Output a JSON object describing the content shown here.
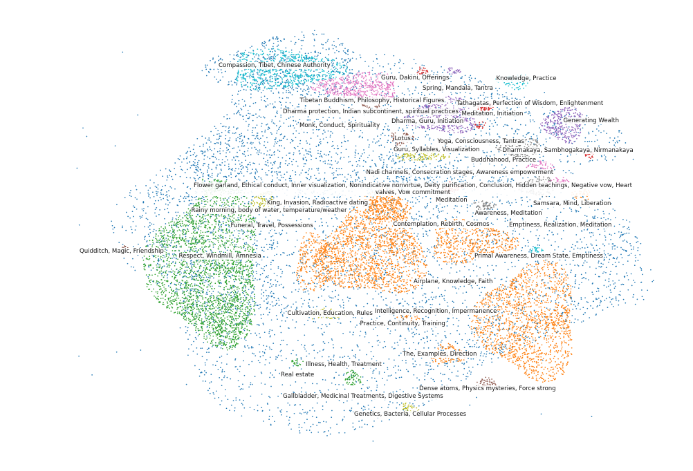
{
  "chart_data": {
    "type": "scatter",
    "title": "",
    "axes_visible": false,
    "grid": false,
    "colors": {
      "background_points": "#1f77b4",
      "teal": "#17becf",
      "pink": "#e377c2",
      "purple": "#9467bd",
      "gray": "#7f7f7f",
      "red": "#d62728",
      "olive": "#bcbd22",
      "brown": "#8c564b",
      "green": "#2ca02c",
      "orange": "#ff7f0e"
    },
    "topic_labels": [
      "Compassion, Tibet, Chinese Authority",
      "Guru, Dakini, Offerings",
      "Spring, Mandala, Tantra",
      "Knowledge, Practice",
      "Tibetan Buddhism, Philosophy, Historical Figures",
      "Dharma protection, Indian subcontinent, spiritual practices",
      "Meditation, Initiation",
      "Dharma, Guru, Initiation",
      "Generating Wealth",
      "Tathagatas, Perfection of Wisdom, Enlightenment",
      "Monk, Conduct, Spirituality",
      "Lotus",
      "Yoga, Consciousness, Tantras",
      "Guru, Syllables, Visualization",
      "Buddhahood, Practice",
      "Dharmakaya, Sambhogakaya, Nirmanakaya",
      "Nadi channels, Consecration stages, Awareness empowerment",
      "Flower garland, Ethical conduct, Inner visualization, Nonindicative nonvirtue, Deity purification, Conclusion, Hidden teachings, Negative vow, Heart valves, Vow commitment",
      "King, Invasion, Radioactive dating",
      "Meditation",
      "Rainy morning, body of water, temperature/weather",
      "Samsara, Mind, Liberation",
      "Awareness, Meditation",
      "Emptiness, Realization, Meditation",
      "Contemplation, Rebirth, Cosmos",
      "Funeral, Travel, Possessions",
      "Quidditch, Magic, Friendship",
      "Respect, Windmill, Amnesia",
      "Primal Awareness, Dream State, Emptiness",
      "Airplane, Knowledge, Faith",
      "Intelligence, Recognition, Impermanence",
      "Cultivation, Education, Rules",
      "Practice, Continuity, Training",
      "The, Examples, Direction",
      "Illness, Health, Treatment",
      "Real estate",
      "Dense atoms, Physics mysteries, Force strong",
      "Gallbladder, Medicinal Treatments, Digestive Systems",
      "Genetics, Bacteria, Cellular Processes"
    ]
  }
}
